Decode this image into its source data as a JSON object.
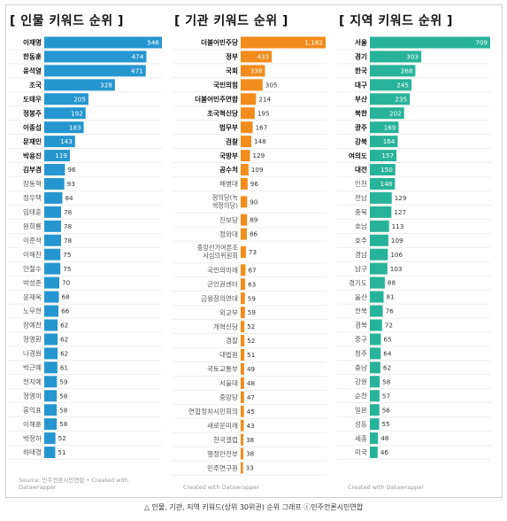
{
  "caption": "△ 인물, 기관, 지역 키워드(상위 30위권) 순위 그래프 ⓒ민주언론시민연합",
  "panels": [
    {
      "title": "[ 인물 키워드 순위 ]",
      "source": "Source: 민주언론시민연합 • Created with Datawrapper",
      "accent": "#2596cf",
      "chart_data": {
        "type": "bar",
        "orientation": "horizontal",
        "max_value": 546,
        "categories": [
          "이재명",
          "한동훈",
          "윤석열",
          "조국",
          "도태우",
          "정봉주",
          "이종섭",
          "문재인",
          "박용진",
          "김부겸",
          "장동혁",
          "정우택",
          "임태훈",
          "원희룡",
          "이준석",
          "이해찬",
          "안철수",
          "박성준",
          "윤재옥",
          "노무현",
          "장예찬",
          "정영환",
          "나경원",
          "박근혜",
          "전지예",
          "정영미",
          "홍익표",
          "이해훈",
          "박정하",
          "하태경"
        ],
        "bold": [
          true,
          true,
          true,
          true,
          true,
          true,
          true,
          true,
          true,
          true,
          false,
          false,
          false,
          false,
          false,
          false,
          false,
          false,
          false,
          false,
          false,
          false,
          false,
          false,
          false,
          false,
          false,
          false,
          false,
          false
        ],
        "values": [
          546,
          474,
          471,
          328,
          205,
          192,
          183,
          143,
          119,
          96,
          93,
          84,
          78,
          78,
          78,
          75,
          75,
          70,
          68,
          66,
          62,
          62,
          62,
          61,
          59,
          58,
          58,
          58,
          52,
          51
        ]
      }
    },
    {
      "title": "[ 기관 키워드 순위 ]",
      "source": "Created with Datawrapper",
      "accent": "#f28c1b",
      "chart_data": {
        "type": "bar",
        "orientation": "horizontal",
        "max_value": 1182,
        "categories": [
          "더불어민주당",
          "정부",
          "국회",
          "국민의힘",
          "더불어민주연합",
          "조국혁신당",
          "법무부",
          "검찰",
          "국방부",
          "공수처",
          "해병대",
          "정의당(녹색정의당)",
          "진보당",
          "정와대",
          "중앙선거여론조사심의위원회",
          "국민의미래",
          "군인권센터",
          "금융정의연대",
          "외교부",
          "개혁신당",
          "경찰",
          "대법원",
          "국토교통부",
          "서울대",
          "중앙당",
          "연합정치시민회의",
          "새로운미래",
          "한국갤럽",
          "행정안전부",
          "민주연구원"
        ],
        "bold": [
          true,
          true,
          true,
          true,
          true,
          true,
          true,
          true,
          true,
          true,
          false,
          false,
          false,
          false,
          false,
          false,
          false,
          false,
          false,
          false,
          false,
          false,
          false,
          false,
          false,
          false,
          false,
          false,
          false,
          false
        ],
        "values": [
          1182,
          433,
          338,
          305,
          214,
          195,
          167,
          148,
          129,
          109,
          96,
          90,
          89,
          86,
          73,
          67,
          63,
          59,
          59,
          52,
          52,
          51,
          49,
          48,
          47,
          45,
          43,
          38,
          38,
          33
        ]
      }
    },
    {
      "title": "[ 지역 키워드 순위 ]",
      "source": "Created with Datawrapper",
      "accent": "#27b39a",
      "chart_data": {
        "type": "bar",
        "orientation": "horizontal",
        "max_value": 709,
        "categories": [
          "서울",
          "경기",
          "한국",
          "대구",
          "부산",
          "북한",
          "광주",
          "강북",
          "여의도",
          "대전",
          "인천",
          "전남",
          "충북",
          "호남",
          "호주",
          "경남",
          "남구",
          "경기도",
          "울산",
          "전북",
          "경북",
          "중구",
          "청주",
          "충남",
          "강원",
          "순천",
          "일본",
          "성동",
          "세종",
          "미국"
        ],
        "bold": [
          true,
          true,
          true,
          true,
          true,
          true,
          true,
          true,
          true,
          true,
          false,
          false,
          false,
          false,
          false,
          false,
          false,
          false,
          false,
          false,
          false,
          false,
          false,
          false,
          false,
          false,
          false,
          false,
          false,
          false
        ],
        "values": [
          709,
          303,
          268,
          245,
          235,
          202,
          169,
          164,
          157,
          150,
          148,
          129,
          127,
          113,
          109,
          106,
          103,
          88,
          81,
          76,
          72,
          65,
          64,
          62,
          58,
          57,
          56,
          55,
          48,
          46
        ]
      }
    }
  ]
}
